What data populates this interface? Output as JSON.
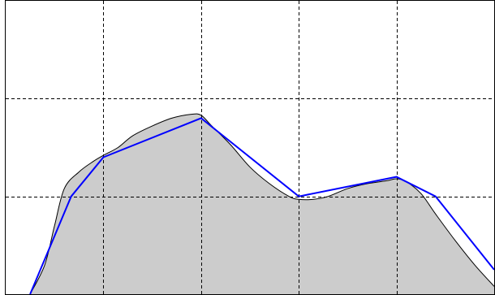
{
  "chart_data": {
    "type": "area",
    "xlim": [
      0,
      5
    ],
    "ylim": [
      0,
      3
    ],
    "grid": true,
    "xgrid": [
      1,
      2,
      3,
      4
    ],
    "ygrid": [
      1,
      2
    ],
    "series": [
      {
        "kind": "smooth-area",
        "color": "#cccccc",
        "stroke": "#000000",
        "x": [
          0.25,
          0.4,
          0.5,
          0.6,
          0.75,
          0.9,
          1.0,
          1.15,
          1.3,
          1.5,
          1.7,
          1.9,
          2.0,
          2.1,
          2.3,
          2.5,
          2.7,
          2.9,
          3.0,
          3.15,
          3.3,
          3.5,
          3.7,
          3.9,
          4.0,
          4.1,
          4.25,
          4.4,
          4.6,
          4.8,
          5.0
        ],
        "y": [
          0.0,
          0.3,
          0.7,
          1.08,
          1.25,
          1.36,
          1.42,
          1.5,
          1.62,
          1.72,
          1.8,
          1.84,
          1.83,
          1.73,
          1.53,
          1.3,
          1.13,
          1.0,
          0.97,
          0.97,
          1.0,
          1.08,
          1.13,
          1.16,
          1.18,
          1.15,
          1.03,
          0.82,
          0.55,
          0.3,
          0.08
        ]
      },
      {
        "kind": "polyline",
        "color": "#0000ff",
        "x": [
          0.25,
          0.67,
          1.0,
          2.0,
          3.0,
          4.0,
          4.4,
          5.0
        ],
        "y": [
          0.0,
          1.0,
          1.4,
          1.8,
          1.0,
          1.2,
          1.0,
          0.25
        ]
      }
    ]
  }
}
